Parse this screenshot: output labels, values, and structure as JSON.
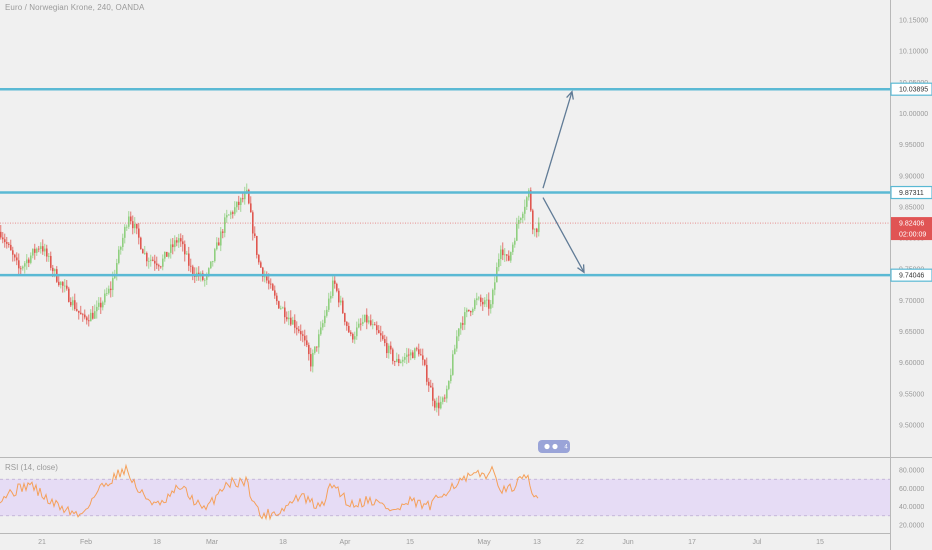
{
  "header": {
    "title": "Euro / Norwegian Krone, 240, OANDA"
  },
  "rsi": {
    "label": "RSI (14, close)",
    "ticks": [
      "80.0000",
      "60.0000",
      "40.0000",
      "20.0000"
    ]
  },
  "colors": {
    "up": "#8fcf7f",
    "down": "#e0574f",
    "level": "#5ab9d4",
    "arrow": "#607b96",
    "current": "#e05454",
    "rsi_line": "#f5a05a",
    "rsi_band": "#e6dcf5",
    "background": "#f0f0f0"
  },
  "chart_data": {
    "type": "candlestick",
    "ylim": [
      9.45,
      10.175
    ],
    "price_ticks": [
      "10.15000",
      "10.10000",
      "10.05000",
      "10.00000",
      "9.95000",
      "9.90000",
      "9.85000",
      "9.80000",
      "9.75000",
      "9.70000",
      "9.65000",
      "9.60000",
      "9.55000",
      "9.50000"
    ],
    "levels": [
      {
        "value": 10.03895,
        "label": "10.03895"
      },
      {
        "value": 9.87311,
        "label": "9.87311"
      },
      {
        "value": 9.74046,
        "label": "9.74046"
      }
    ],
    "current_price": {
      "value": 9.82406,
      "label": "9.82406",
      "countdown": "02:00:09"
    },
    "x_ticks": [
      "21",
      "Feb",
      "18",
      "Mar",
      "18",
      "Apr",
      "15",
      "May",
      "13",
      "22",
      "Jun",
      "17",
      "Jul",
      "15"
    ],
    "waypoints": [
      [
        0,
        9.81
      ],
      [
        18,
        9.75
      ],
      [
        40,
        9.79
      ],
      [
        55,
        9.74
      ],
      [
        82,
        9.67
      ],
      [
        95,
        9.68
      ],
      [
        110,
        9.72
      ],
      [
        128,
        9.84
      ],
      [
        145,
        9.77
      ],
      [
        160,
        9.76
      ],
      [
        178,
        9.8
      ],
      [
        190,
        9.75
      ],
      [
        205,
        9.73
      ],
      [
        225,
        9.83
      ],
      [
        246,
        9.87
      ],
      [
        258,
        9.76
      ],
      [
        275,
        9.7
      ],
      [
        300,
        9.65
      ],
      [
        310,
        9.6
      ],
      [
        320,
        9.65
      ],
      [
        333,
        9.73
      ],
      [
        350,
        9.64
      ],
      [
        365,
        9.67
      ],
      [
        380,
        9.64
      ],
      [
        395,
        9.6
      ],
      [
        405,
        9.61
      ],
      [
        418,
        9.62
      ],
      [
        435,
        9.53
      ],
      [
        445,
        9.54
      ],
      [
        458,
        9.66
      ],
      [
        475,
        9.7
      ],
      [
        490,
        9.69
      ],
      [
        500,
        9.79
      ],
      [
        507,
        9.76
      ],
      [
        518,
        9.83
      ],
      [
        528,
        9.873
      ],
      [
        533,
        9.81
      ],
      [
        539,
        9.824
      ]
    ],
    "projection_arrows": [
      {
        "from": {
          "x": "bar_543",
          "y": 9.88
        },
        "to": {
          "x": "bar_572",
          "y": 10.035
        }
      },
      {
        "from": {
          "x": "bar_543",
          "y": 9.865
        },
        "to": {
          "x": "bar_584",
          "y": 9.745
        }
      }
    ],
    "rsi_range": [
      0,
      100
    ],
    "rsi_band": [
      30,
      70
    ],
    "rsi_waypoints": [
      [
        0,
        50
      ],
      [
        30,
        65
      ],
      [
        50,
        45
      ],
      [
        80,
        30
      ],
      [
        100,
        60
      ],
      [
        125,
        82
      ],
      [
        140,
        55
      ],
      [
        160,
        40
      ],
      [
        180,
        62
      ],
      [
        205,
        35
      ],
      [
        225,
        65
      ],
      [
        246,
        68
      ],
      [
        260,
        30
      ],
      [
        280,
        35
      ],
      [
        300,
        52
      ],
      [
        320,
        38
      ],
      [
        333,
        66
      ],
      [
        350,
        42
      ],
      [
        370,
        48
      ],
      [
        395,
        35
      ],
      [
        410,
        45
      ],
      [
        430,
        40
      ],
      [
        450,
        62
      ],
      [
        470,
        72
      ],
      [
        492,
        78
      ],
      [
        505,
        55
      ],
      [
        518,
        66
      ],
      [
        528,
        72
      ],
      [
        533,
        48
      ],
      [
        539,
        56
      ]
    ]
  },
  "toolbar": {
    "icons": [
      "eye-icon",
      "gear-icon",
      "bars-icon"
    ],
    "badge": "4"
  }
}
